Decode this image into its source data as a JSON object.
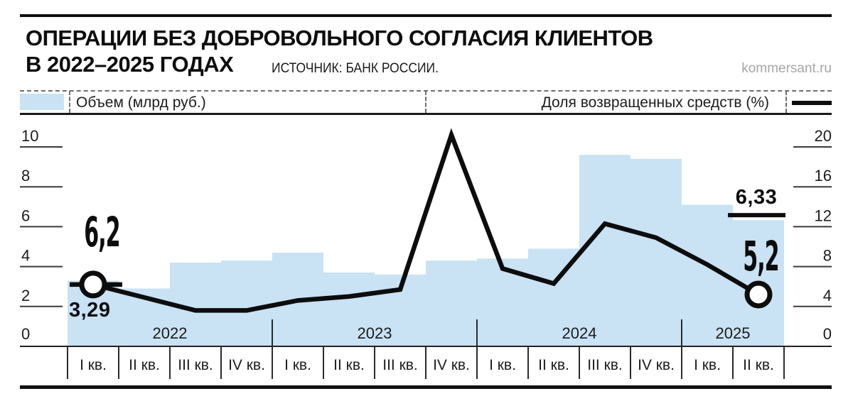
{
  "header": {
    "title_line1": "ОПЕРАЦИИ БЕЗ ДОБРОВОЛЬНОГО СОГЛАСИЯ КЛИЕНТОВ",
    "title_line2": "В 2022–2025 ГОДАХ",
    "source": "ИСТОЧНИК: БАНК РОССИИ.",
    "site": "kommersant.ru"
  },
  "legend": {
    "volume_label": "Объем (млрд руб.)",
    "share_label": "Доля возвращенных средств (%)"
  },
  "annotations": {
    "first_share": "6,2",
    "first_volume": "3,29",
    "last_volume": "6,33",
    "last_share": "5,2"
  },
  "colors": {
    "bar": "#c9e2f4",
    "line": "#0d0d0d",
    "muted_text": "#a6a6a6"
  },
  "chart_data": {
    "type": "combo",
    "title": "Операции без добровольного согласия клиентов в 2022–2025 годах",
    "quarters": [
      "I кв.",
      "II кв.",
      "III кв.",
      "IV кв.",
      "I кв.",
      "II кв.",
      "III кв.",
      "IV кв.",
      "I кв.",
      "II кв.",
      "III кв.",
      "IV кв.",
      "I кв.",
      "II кв."
    ],
    "year_groups": [
      {
        "label": "2022",
        "count": 4
      },
      {
        "label": "2023",
        "count": 4
      },
      {
        "label": "2024",
        "count": 4
      },
      {
        "label": "2025",
        "count": 2
      }
    ],
    "series": [
      {
        "name": "Объем (млрд руб.)",
        "type": "bar",
        "axis": "left",
        "color": "#c9e2f4",
        "values": [
          3.29,
          2.9,
          4.2,
          4.3,
          4.7,
          3.7,
          3.6,
          4.3,
          4.4,
          4.9,
          9.6,
          9.4,
          7.1,
          6.33
        ]
      },
      {
        "name": "Доля возвращенных средств (%)",
        "type": "line",
        "axis": "right",
        "color": "#0d0d0d",
        "values": [
          6.2,
          4.9,
          3.6,
          3.6,
          4.6,
          5.0,
          5.7,
          21.2,
          7.8,
          6.3,
          12.3,
          10.9,
          8.2,
          5.2
        ]
      }
    ],
    "left_axis": {
      "ticks": [
        0,
        2,
        4,
        6,
        8,
        10
      ],
      "range": [
        0,
        10
      ]
    },
    "right_axis": {
      "ticks": [
        0,
        4,
        8,
        12,
        16,
        20
      ],
      "range": [
        0,
        20
      ]
    },
    "point_labels": {
      "first_line_pct": "6,2",
      "first_bar_bln": "3,29",
      "last_bar_bln": "6,33",
      "last_line_pct": "5,2"
    },
    "legend_position": "top",
    "grid": "ticks-only"
  }
}
